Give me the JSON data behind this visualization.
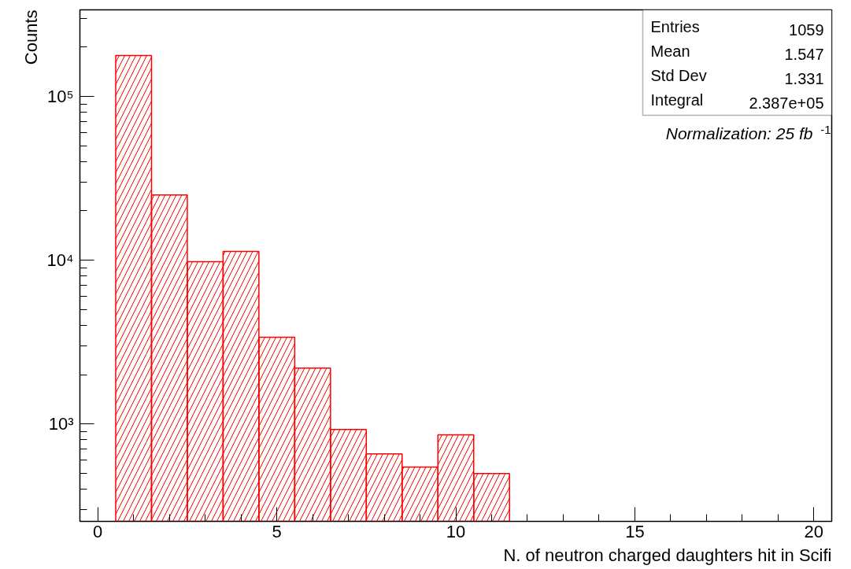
{
  "chart_data": {
    "type": "histogram",
    "xlabel": "N. of neutron charged daughters hit in Scifi",
    "ylabel": "Counts",
    "bins": [
      0.5,
      1.5,
      2.5,
      3.5,
      4.5,
      5.5,
      6.5,
      7.5,
      8.5,
      9.5,
      10.5,
      11.5
    ],
    "values": [
      178000,
      25000,
      9800,
      11300,
      3380,
      2190,
      925,
      656,
      545,
      857,
      497
    ],
    "color": "#ff0000",
    "log": "y",
    "xlim": [
      -0.5,
      20.5
    ],
    "xticks": [
      0,
      5,
      10,
      15,
      20
    ],
    "ylim": [
      254,
      338000
    ],
    "yticks": [
      {
        "value": 1000,
        "label": "10³"
      },
      {
        "value": 10000,
        "label": "10⁴"
      },
      {
        "value": 100000,
        "label": "10⁵"
      }
    ],
    "grid": false,
    "annotations": [
      "Entries",
      "1059",
      "Mean",
      "1.547",
      "Std Dev",
      "1.331",
      "Integral",
      "2.387e+05",
      "Normalization: 25 fb$^{-1}$"
    ]
  }
}
